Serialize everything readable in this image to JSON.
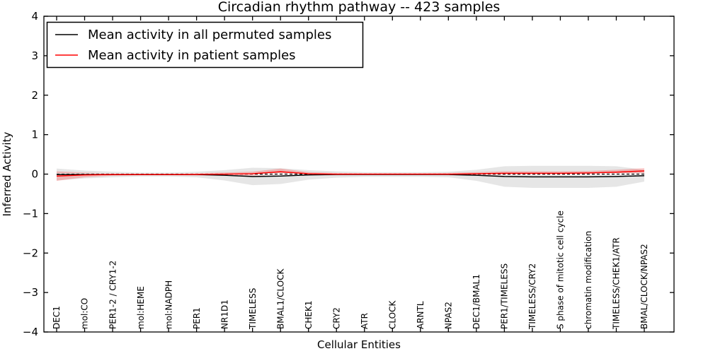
{
  "chart_data": {
    "type": "line",
    "title": "Circadian rhythm pathway -- 423 samples",
    "xlabel": "Cellular Entities",
    "ylabel": "Inferred Activity",
    "ylim": [
      -4,
      4
    ],
    "yticks": [
      -4,
      -3,
      -2,
      -1,
      0,
      1,
      2,
      3,
      4
    ],
    "grid": false,
    "legend_position": "upper-left",
    "frame_color": "#000000",
    "background_color": "#ffffff",
    "categories": [
      "DEC1",
      "mol:CO",
      "PER1-2 / CRY1-2",
      "mol:HEME",
      "mol:NADPH",
      "PER1",
      "NR1D1",
      "TIMELESS",
      "BMAL1/CLOCK",
      "CHEK1",
      "CRY2",
      "ATR",
      "CLOCK",
      "ARNTL",
      "NPAS2",
      "DEC1/BMAL1",
      "PER1/TIMELESS",
      "TIMELESS/CRY2",
      "S phase of mitotic cell cycle",
      "chromatin modification",
      "TIMELESS/CHEK1/ATR",
      "BMAL/CLOCK/NPAS2"
    ],
    "series": [
      {
        "name": "Mean activity in all permuted samples",
        "color": "#000000",
        "style": "solid",
        "values": [
          -0.01,
          -0.01,
          -0.01,
          -0.01,
          -0.01,
          -0.01,
          -0.03,
          -0.06,
          -0.05,
          -0.02,
          -0.01,
          -0.01,
          -0.01,
          -0.01,
          -0.01,
          -0.03,
          -0.06,
          -0.07,
          -0.07,
          -0.07,
          -0.06,
          -0.04
        ]
      },
      {
        "name": "Mean activity in patient samples",
        "color": "#ff0000",
        "style": "solid",
        "values": [
          -0.05,
          -0.02,
          -0.01,
          -0.01,
          -0.01,
          -0.005,
          0.0,
          0.01,
          0.06,
          0.01,
          0.0,
          0.0,
          0.0,
          0.0,
          0.0,
          0.01,
          0.02,
          0.02,
          0.02,
          0.03,
          0.05,
          0.08
        ]
      }
    ],
    "reference_line": {
      "name": "zero-dashed-line",
      "value": 0,
      "color": "#000000",
      "style": "dashed"
    },
    "bands": [
      {
        "name": "permuted-samples-spread-band",
        "color": "#d9d9d9",
        "opacity": 0.65,
        "upper": [
          0.14,
          0.09,
          0.06,
          0.04,
          0.04,
          0.06,
          0.1,
          0.16,
          0.15,
          0.1,
          0.07,
          0.05,
          0.05,
          0.05,
          0.06,
          0.11,
          0.2,
          0.21,
          0.21,
          0.21,
          0.2,
          0.11
        ],
        "lower": [
          -0.16,
          -0.11,
          -0.08,
          -0.06,
          -0.06,
          -0.08,
          -0.16,
          -0.28,
          -0.25,
          -0.14,
          -0.09,
          -0.07,
          -0.07,
          -0.07,
          -0.08,
          -0.17,
          -0.32,
          -0.35,
          -0.35,
          -0.35,
          -0.32,
          -0.19
        ]
      },
      {
        "name": "patient-samples-spread-band",
        "color": "#ff0000",
        "opacity": 0.22,
        "upper": [
          0.07,
          0.04,
          0.02,
          0.01,
          0.01,
          0.025,
          0.04,
          0.06,
          0.14,
          0.05,
          0.03,
          0.02,
          0.02,
          0.02,
          0.03,
          0.05,
          0.07,
          0.07,
          0.07,
          0.08,
          0.11,
          0.15
        ],
        "lower": [
          -0.17,
          -0.08,
          -0.04,
          -0.03,
          -0.03,
          -0.035,
          -0.04,
          -0.04,
          -0.02,
          -0.03,
          -0.03,
          -0.02,
          -0.02,
          -0.02,
          -0.03,
          -0.03,
          -0.03,
          -0.03,
          -0.03,
          -0.02,
          -0.01,
          0.01
        ]
      }
    ]
  }
}
